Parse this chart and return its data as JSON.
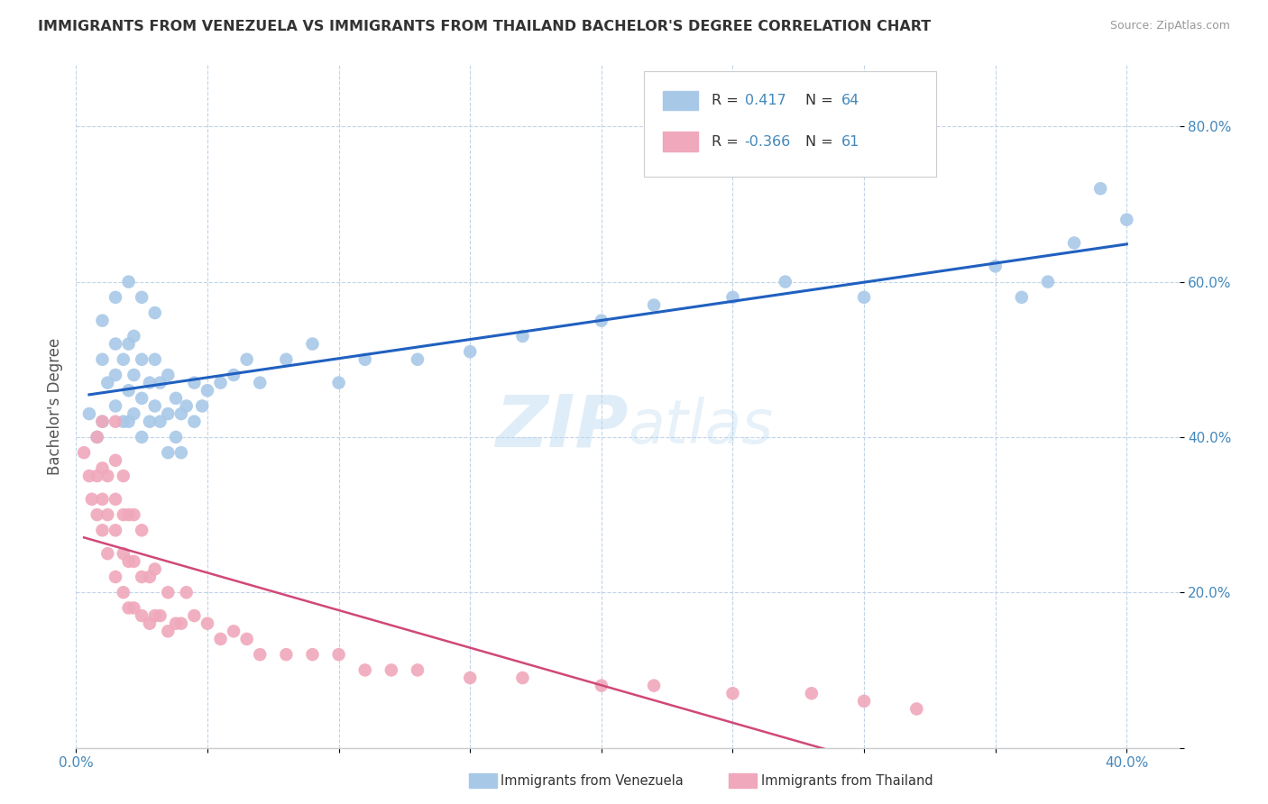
{
  "title": "IMMIGRANTS FROM VENEZUELA VS IMMIGRANTS FROM THAILAND BACHELOR'S DEGREE CORRELATION CHART",
  "source": "Source: ZipAtlas.com",
  "ylabel": "Bachelor's Degree",
  "xlim": [
    0.0,
    0.42
  ],
  "ylim": [
    0.0,
    0.88
  ],
  "xticks": [
    0.0,
    0.05,
    0.1,
    0.15,
    0.2,
    0.25,
    0.3,
    0.35,
    0.4
  ],
  "xticklabels": [
    "0.0%",
    "",
    "",
    "",
    "",
    "",
    "",
    "",
    "40.0%"
  ],
  "yticks": [
    0.0,
    0.2,
    0.4,
    0.6,
    0.8
  ],
  "yticklabels": [
    "",
    "20.0%",
    "40.0%",
    "60.0%",
    "80.0%"
  ],
  "r_blue": 0.417,
  "n_blue": 64,
  "r_pink": -0.366,
  "n_pink": 61,
  "blue_color": "#a8c8e8",
  "pink_color": "#f0a8bc",
  "line_blue": "#2060c0",
  "line_pink": "#d04878",
  "watermark": "ZIPatlas",
  "background_color": "#ffffff",
  "grid_color": "#c0d4e8",
  "blue_scatter_x": [
    0.005,
    0.008,
    0.01,
    0.01,
    0.01,
    0.012,
    0.015,
    0.015,
    0.015,
    0.015,
    0.018,
    0.018,
    0.02,
    0.02,
    0.02,
    0.02,
    0.022,
    0.022,
    0.022,
    0.025,
    0.025,
    0.025,
    0.025,
    0.028,
    0.028,
    0.03,
    0.03,
    0.03,
    0.032,
    0.032,
    0.035,
    0.035,
    0.035,
    0.038,
    0.038,
    0.04,
    0.04,
    0.042,
    0.045,
    0.045,
    0.048,
    0.05,
    0.055,
    0.06,
    0.065,
    0.07,
    0.08,
    0.09,
    0.1,
    0.11,
    0.13,
    0.15,
    0.17,
    0.2,
    0.22,
    0.25,
    0.27,
    0.3,
    0.35,
    0.36,
    0.37,
    0.38,
    0.39,
    0.4
  ],
  "blue_scatter_y": [
    0.43,
    0.4,
    0.42,
    0.5,
    0.55,
    0.47,
    0.44,
    0.48,
    0.52,
    0.58,
    0.42,
    0.5,
    0.42,
    0.46,
    0.52,
    0.6,
    0.43,
    0.48,
    0.53,
    0.4,
    0.45,
    0.5,
    0.58,
    0.42,
    0.47,
    0.44,
    0.5,
    0.56,
    0.42,
    0.47,
    0.38,
    0.43,
    0.48,
    0.4,
    0.45,
    0.38,
    0.43,
    0.44,
    0.42,
    0.47,
    0.44,
    0.46,
    0.47,
    0.48,
    0.5,
    0.47,
    0.5,
    0.52,
    0.47,
    0.5,
    0.5,
    0.51,
    0.53,
    0.55,
    0.57,
    0.58,
    0.6,
    0.58,
    0.62,
    0.58,
    0.6,
    0.65,
    0.72,
    0.68
  ],
  "pink_scatter_x": [
    0.003,
    0.005,
    0.006,
    0.008,
    0.008,
    0.008,
    0.01,
    0.01,
    0.01,
    0.01,
    0.012,
    0.012,
    0.012,
    0.015,
    0.015,
    0.015,
    0.015,
    0.015,
    0.018,
    0.018,
    0.018,
    0.018,
    0.02,
    0.02,
    0.02,
    0.022,
    0.022,
    0.022,
    0.025,
    0.025,
    0.025,
    0.028,
    0.028,
    0.03,
    0.03,
    0.032,
    0.035,
    0.035,
    0.038,
    0.04,
    0.042,
    0.045,
    0.05,
    0.055,
    0.06,
    0.065,
    0.07,
    0.08,
    0.09,
    0.1,
    0.11,
    0.12,
    0.13,
    0.15,
    0.17,
    0.2,
    0.22,
    0.25,
    0.28,
    0.3,
    0.32
  ],
  "pink_scatter_y": [
    0.38,
    0.35,
    0.32,
    0.3,
    0.35,
    0.4,
    0.28,
    0.32,
    0.36,
    0.42,
    0.25,
    0.3,
    0.35,
    0.22,
    0.28,
    0.32,
    0.37,
    0.42,
    0.2,
    0.25,
    0.3,
    0.35,
    0.18,
    0.24,
    0.3,
    0.18,
    0.24,
    0.3,
    0.17,
    0.22,
    0.28,
    0.16,
    0.22,
    0.17,
    0.23,
    0.17,
    0.15,
    0.2,
    0.16,
    0.16,
    0.2,
    0.17,
    0.16,
    0.14,
    0.15,
    0.14,
    0.12,
    0.12,
    0.12,
    0.12,
    0.1,
    0.1,
    0.1,
    0.09,
    0.09,
    0.08,
    0.08,
    0.07,
    0.07,
    0.06,
    0.05
  ],
  "legend_r_blue_text": "R = ",
  "legend_r_blue_val": "0.417",
  "legend_n_blue_text": "N = ",
  "legend_n_blue_val": "64",
  "legend_r_pink_text": "R = ",
  "legend_r_pink_val": "-0.366",
  "legend_n_pink_text": "N = ",
  "legend_n_pink_val": "61",
  "bottom_label_blue": "Immigrants from Venezuela",
  "bottom_label_pink": "Immigrants from Thailand"
}
